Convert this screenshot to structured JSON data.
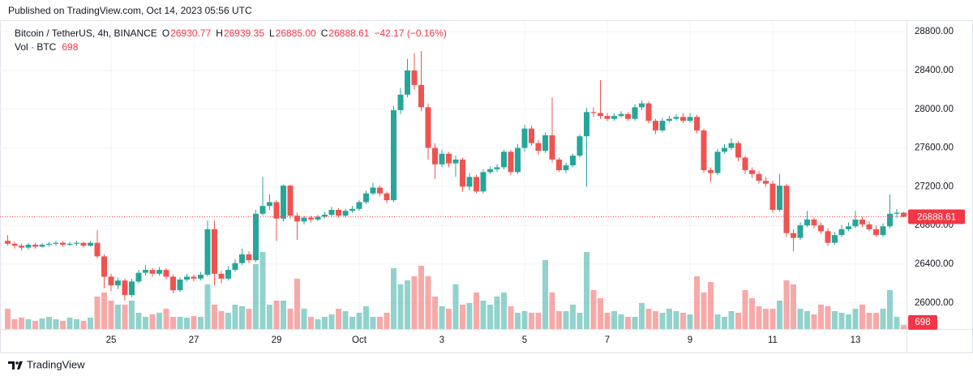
{
  "chart_data": {
    "type": "candlestick",
    "publisher": "Published on TradingView.com, Oct 14, 2023 05:56 UTC",
    "title": "Bitcoin / TetherUS, 4h, BINANCE",
    "header_ohlc": [
      {
        "key": "O",
        "value": "26930.77"
      },
      {
        "key": "H",
        "value": "26939.35"
      },
      {
        "key": "L",
        "value": "26885.00"
      },
      {
        "key": "C",
        "value": "26888.61"
      }
    ],
    "header_change": "−42.17 (−0.16%)",
    "brand": "TradingView",
    "up_color": "#26a69a",
    "down_color": "#ef5350",
    "categories": [
      null,
      null,
      null,
      null,
      null,
      null,
      null,
      null,
      null,
      null,
      null,
      null,
      null,
      null,
      null,
      "25",
      null,
      null,
      null,
      null,
      null,
      null,
      null,
      null,
      null,
      null,
      null,
      "27",
      null,
      null,
      null,
      null,
      null,
      null,
      null,
      null,
      null,
      null,
      null,
      "29",
      null,
      null,
      null,
      null,
      null,
      null,
      null,
      null,
      null,
      null,
      null,
      "Oct",
      null,
      null,
      null,
      null,
      null,
      null,
      null,
      null,
      null,
      null,
      null,
      "3",
      null,
      null,
      null,
      null,
      null,
      null,
      null,
      null,
      null,
      null,
      null,
      "5",
      null,
      null,
      null,
      null,
      null,
      null,
      null,
      null,
      null,
      null,
      null,
      "7",
      null,
      null,
      null,
      null,
      null,
      null,
      null,
      null,
      null,
      null,
      null,
      "9",
      null,
      null,
      null,
      null,
      null,
      null,
      null,
      null,
      null,
      null,
      null,
      "11",
      null,
      null,
      null,
      null,
      null,
      null,
      null,
      null,
      null,
      null,
      null,
      "13",
      null,
      null,
      null,
      null,
      null,
      null,
      null
    ],
    "open": [
      26640,
      26610,
      26590,
      26570,
      26600,
      26580,
      26600,
      26610,
      26620,
      26600,
      26610,
      26620,
      26590,
      26620,
      26480,
      26270,
      26180,
      26230,
      26080,
      26220,
      26310,
      26340,
      26300,
      26340,
      26270,
      26130,
      26240,
      26270,
      26250,
      26290,
      26760,
      26300,
      26250,
      26340,
      26410,
      26500,
      26440,
      26920,
      27000,
      27040,
      26870,
      27210,
      26900,
      26840,
      26880,
      26860,
      26890,
      26910,
      26960,
      26900,
      26950,
      26970,
      27040,
      27130,
      27190,
      27130,
      27060,
      27990,
      28150,
      28400,
      28250,
      28020,
      27600,
      27430,
      27540,
      27440,
      27480,
      27200,
      27300,
      27150,
      27350,
      27380,
      27400,
      27560,
      27350,
      27600,
      27800,
      27650,
      27570,
      27730,
      27480,
      27370,
      27420,
      27520,
      27720,
      27970,
      27960,
      27930,
      27900,
      27930,
      27950,
      27900,
      28020,
      28060,
      27880,
      27780,
      27880,
      27900,
      27920,
      27880,
      27920,
      27780,
      27370,
      27340,
      27560,
      27600,
      27650,
      27500,
      27370,
      27330,
      27260,
      27230,
      26960,
      27210,
      26720,
      26670,
      26800,
      26860,
      26800,
      26740,
      26620,
      26700,
      26760,
      26790,
      26860,
      26810,
      26760,
      26700,
      26790,
      26920,
      26930.77
    ],
    "high": [
      26700,
      26630,
      26610,
      26620,
      26620,
      26620,
      26630,
      26640,
      26640,
      26630,
      26640,
      26630,
      26640,
      26750,
      26500,
      26300,
      26260,
      26250,
      26250,
      26340,
      26390,
      26360,
      26370,
      26360,
      26290,
      26260,
      26300,
      26290,
      26320,
      26850,
      26850,
      26330,
      26380,
      26450,
      26560,
      26530,
      26960,
      27300,
      27120,
      27060,
      27220,
      27220,
      26930,
      26900,
      26900,
      26910,
      26940,
      26990,
      26980,
      26970,
      27000,
      27060,
      27160,
      27240,
      27210,
      27150,
      28030,
      28220,
      28520,
      28580,
      28600,
      28060,
      27650,
      27580,
      27560,
      27520,
      27500,
      27340,
      27320,
      27380,
      27410,
      27430,
      27580,
      27580,
      27640,
      27840,
      27830,
      27680,
      27760,
      28120,
      27500,
      27450,
      27540,
      27740,
      28010,
      28020,
      28300,
      27960,
      27960,
      27980,
      27970,
      28050,
      28090,
      28080,
      27900,
      27910,
      27930,
      27950,
      27960,
      27960,
      27940,
      27800,
      27400,
      27590,
      27640,
      27700,
      27670,
      27520,
      27400,
      27360,
      27300,
      27260,
      27330,
      27230,
      26760,
      26830,
      26950,
      26880,
      26830,
      26770,
      26730,
      26800,
      26830,
      26950,
      26890,
      26840,
      26800,
      26820,
      27120,
      26970,
      26939.35
    ],
    "low": [
      26590,
      26560,
      26540,
      26550,
      26560,
      26570,
      26580,
      26590,
      26580,
      26590,
      26590,
      26570,
      26580,
      26460,
      26150,
      26120,
      26140,
      26020,
      26060,
      26200,
      26280,
      26270,
      26280,
      26240,
      26100,
      26110,
      26220,
      26220,
      26230,
      26270,
      26180,
      26200,
      26230,
      26320,
      26390,
      26410,
      26420,
      26900,
      26960,
      26640,
      26840,
      26870,
      26650,
      26810,
      26830,
      26840,
      26870,
      26890,
      26880,
      26880,
      26930,
      26950,
      27020,
      27110,
      27100,
      27030,
      27040,
      27950,
      28120,
      28200,
      27980,
      27480,
      27280,
      27400,
      27400,
      27300,
      27150,
      27160,
      27130,
      27130,
      27330,
      27350,
      27380,
      27320,
      27330,
      27560,
      27620,
      27530,
      27550,
      27450,
      27350,
      27340,
      27400,
      27500,
      27200,
      27920,
      27900,
      27880,
      27880,
      27910,
      27880,
      27880,
      27990,
      27850,
      27740,
      27760,
      27860,
      27880,
      27860,
      27860,
      27750,
      27340,
      27250,
      27320,
      27540,
      27580,
      27460,
      27330,
      27290,
      27230,
      27200,
      26930,
      26940,
      26680,
      26530,
      26650,
      26780,
      26770,
      26710,
      26590,
      26600,
      26680,
      26740,
      26770,
      26780,
      26740,
      26680,
      26680,
      26770,
      26880,
      26885
    ],
    "close": [
      26610,
      26590,
      26570,
      26600,
      26580,
      26600,
      26610,
      26620,
      26600,
      26610,
      26620,
      26590,
      26620,
      26480,
      26270,
      26180,
      26230,
      26080,
      26220,
      26310,
      26340,
      26300,
      26340,
      26270,
      26130,
      26240,
      26270,
      26250,
      26290,
      26760,
      26300,
      26250,
      26340,
      26410,
      26500,
      26440,
      26920,
      27000,
      27040,
      26870,
      27210,
      26900,
      26840,
      26880,
      26860,
      26890,
      26910,
      26960,
      26900,
      26950,
      26970,
      27040,
      27130,
      27190,
      27130,
      27060,
      27990,
      28150,
      28400,
      28250,
      28020,
      27600,
      27430,
      27540,
      27440,
      27480,
      27200,
      27300,
      27150,
      27350,
      27380,
      27400,
      27560,
      27350,
      27600,
      27800,
      27650,
      27570,
      27730,
      27480,
      27370,
      27420,
      27520,
      27720,
      27970,
      27960,
      27930,
      27900,
      27930,
      27950,
      27900,
      28020,
      28060,
      27880,
      27780,
      27880,
      27900,
      27920,
      27880,
      27920,
      27780,
      27370,
      27340,
      27560,
      27600,
      27650,
      27500,
      27370,
      27330,
      27260,
      27230,
      26960,
      27210,
      26720,
      26670,
      26800,
      26860,
      26800,
      26740,
      26620,
      26700,
      26760,
      26790,
      26860,
      26810,
      26760,
      26700,
      26790,
      26920,
      26930.77,
      26888.61
    ],
    "volume": {
      "name": "Vol · BTC",
      "values": [
        3500,
        1680,
        1960,
        1680,
        1400,
        1820,
        2100,
        1680,
        1400,
        1960,
        1680,
        1400,
        1960,
        5600,
        6300,
        4900,
        4200,
        4200,
        4900,
        2800,
        2100,
        2520,
        2800,
        3500,
        2100,
        2100,
        1960,
        2240,
        2100,
        7700,
        4200,
        3080,
        2800,
        4200,
        3920,
        3500,
        11200,
        13300,
        4200,
        4900,
        4900,
        3500,
        8680,
        3500,
        2100,
        1680,
        2100,
        2520,
        3500,
        3080,
        2100,
        2800,
        3920,
        2100,
        2100,
        2800,
        10500,
        7700,
        8400,
        9100,
        10920,
        9100,
        5600,
        3920,
        3500,
        7700,
        4200,
        4480,
        6300,
        4900,
        4200,
        5600,
        6300,
        3920,
        2800,
        3080,
        2800,
        2800,
        11900,
        6300,
        3080,
        3080,
        4200,
        2800,
        13300,
        6720,
        5320,
        2800,
        3080,
        2520,
        2100,
        2100,
        4480,
        3500,
        3080,
        2800,
        3500,
        3080,
        2800,
        2520,
        9100,
        6300,
        8120,
        2520,
        2100,
        3080,
        2800,
        6720,
        5320,
        3920,
        3500,
        3500,
        4900,
        8400,
        7700,
        3500,
        3080,
        2520,
        4200,
        3920,
        3080,
        2800,
        2520,
        3500,
        4200,
        2800,
        2800,
        3500,
        6720,
        2100,
        698
      ]
    },
    "ylim": [
      25730,
      28910
    ],
    "yticks": [
      {
        "value": 26000,
        "label": "26000.00"
      },
      {
        "value": 26400,
        "label": "26400.00"
      },
      {
        "value": 26800,
        "label": "26800.00"
      },
      {
        "value": 27200,
        "label": "27200.00"
      },
      {
        "value": 27600,
        "label": "27600.00"
      },
      {
        "value": 28000,
        "label": "28000.00"
      },
      {
        "value": 28400,
        "label": "28400.00"
      },
      {
        "value": 28800,
        "label": "28800.00"
      }
    ],
    "grid": true
  }
}
